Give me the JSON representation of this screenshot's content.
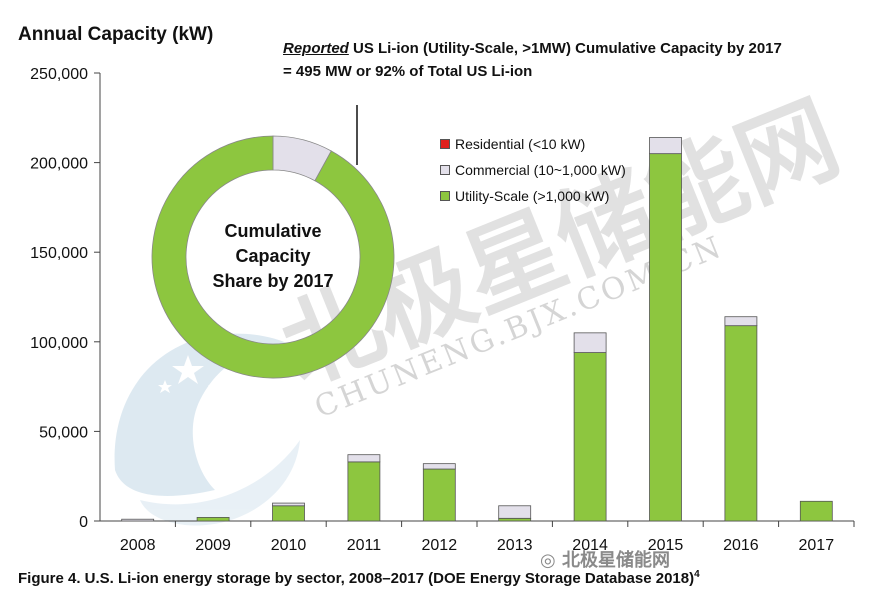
{
  "header": {
    "ylabel": "Annual Capacity (kW)",
    "note_reported": "Reported",
    "note_line1_rest": " US Li-ion (Utility-Scale, >1MW) Cumulative Capacity by 2017",
    "note_line2": "= 495 MW or 92% of Total US Li-ion"
  },
  "donut": {
    "label_line1": "Cumulative",
    "label_line2": "Capacity",
    "label_line3": "Share by 2017",
    "share_utility_pct": 92
  },
  "caption": {
    "text": "Figure 4. U.S. Li-ion energy storage by sector, 2008–2017 (DOE Energy Storage Database 2018)",
    "superscript": "4"
  },
  "watermark": {
    "text_cn": "北极星储能网",
    "text_en": "CHUNENG.BJX.COM.CN",
    "corner_text": "北极星储能网"
  },
  "colors": {
    "utility": "#8dc63f",
    "commercial": "#e3e0ea",
    "residential": "#e0201c",
    "outline": "#555555"
  },
  "chart_data": {
    "type": "bar",
    "stacked": true,
    "categories": [
      "2008",
      "2009",
      "2010",
      "2011",
      "2012",
      "2013",
      "2014",
      "2015",
      "2016",
      "2017"
    ],
    "series": [
      {
        "name": "Residential (<10 kW)",
        "color_key": "residential",
        "values": [
          0,
          0,
          0,
          0,
          0,
          0,
          0,
          0,
          0,
          0
        ]
      },
      {
        "name": "Commercial (10~1,000 kW)",
        "color_key": "commercial",
        "values": [
          1000,
          0,
          1500,
          4000,
          3000,
          7000,
          11000,
          9000,
          5000,
          0
        ]
      },
      {
        "name": "Utility-Scale (>1,000 kW)",
        "color_key": "utility",
        "values": [
          0,
          2000,
          8500,
          33000,
          29000,
          1500,
          94000,
          205000,
          109000,
          11000
        ]
      }
    ],
    "ylabel": "Annual Capacity (kW)",
    "ylim": [
      0,
      250000
    ],
    "yticks": [
      0,
      50000,
      100000,
      150000,
      200000,
      250000
    ],
    "ytick_labels": [
      "0",
      "50,000",
      "100,000",
      "150,000",
      "200,000",
      "250,000"
    ],
    "legend": {
      "placement": "top-center",
      "entries": [
        "Residential (<10 kW)",
        "Commercial (10~1,000 kW)",
        "Utility-Scale (>1,000 kW)"
      ]
    },
    "grid": false
  }
}
